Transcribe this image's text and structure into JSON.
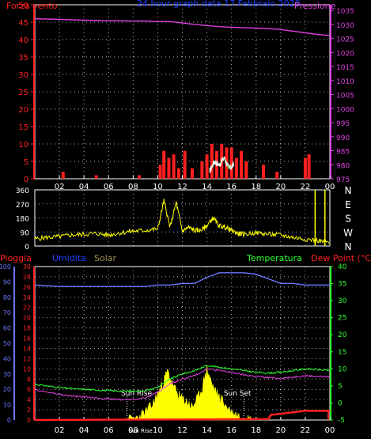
{
  "colors": {
    "red": "#ff2020",
    "magenta": "#e040e0",
    "blue": "#2040ff",
    "yellow": "#ffff00",
    "green": "#30ff30",
    "white": "#ffffff",
    "olive": "#a09050",
    "periwinkle": "#6a78ff",
    "grid": "#ffffff"
  },
  "chart_data": [
    {
      "type": "line",
      "title": "24 hour graph data  17 Febbraio 2020",
      "left_axis": {
        "label": "Forza vento",
        "ticks": [
          "0",
          "5",
          "10",
          "15",
          "20",
          "25",
          "30",
          "35",
          "40",
          "45",
          "50"
        ],
        "range": [
          0,
          50
        ]
      },
      "right_axis": {
        "label": "Pressione",
        "ticks": [
          "975",
          "980",
          "985",
          "990",
          "995",
          "1000",
          "1005",
          "1010",
          "1015",
          "1020",
          "1025",
          "1030",
          "1035"
        ],
        "range": [
          975,
          1037
        ]
      },
      "x_ticks": [
        "02",
        "04",
        "06",
        "08",
        "10",
        "12",
        "14",
        "16",
        "18",
        "20",
        "22",
        "00"
      ],
      "series": [
        {
          "name": "Pressione",
          "x": [
            0,
            2,
            4,
            6,
            8,
            9,
            10,
            11,
            12,
            13,
            14,
            15,
            16,
            17,
            18,
            19,
            20,
            21,
            22,
            23,
            24
          ],
          "y": [
            1032.0,
            1031.8,
            1031.5,
            1031.3,
            1031.2,
            1031.2,
            1031.0,
            1031.0,
            1030.5,
            1030.0,
            1029.6,
            1029.2,
            1029.0,
            1028.8,
            1028.7,
            1028.5,
            1028.2,
            1027.6,
            1027.0,
            1026.4,
            1026.0
          ]
        },
        {
          "name": "Forza vento",
          "x": [
            0,
            2.3,
            5,
            8.5,
            10.2,
            10.5,
            10.9,
            11.3,
            11.7,
            12.2,
            12.8,
            13.6,
            14.0,
            14.4,
            14.8,
            15.2,
            15.6,
            16.0,
            16.4,
            16.8,
            17.2,
            18.6,
            19.7,
            22.0,
            22.3
          ],
          "y": [
            0,
            2,
            1,
            1,
            4,
            8,
            6,
            7,
            3,
            8,
            3,
            5,
            7,
            10,
            8,
            10,
            9,
            9,
            6,
            8,
            5,
            4,
            2,
            6,
            7
          ]
        },
        {
          "name": "raffica",
          "x": [
            14.2,
            14.6,
            15.0,
            15.4,
            15.8,
            16.2
          ],
          "y": [
            2,
            5,
            4,
            6,
            3,
            4
          ]
        }
      ]
    },
    {
      "type": "line",
      "title": "",
      "left_axis": {
        "label": "",
        "ticks": [
          "0",
          "90",
          "180",
          "270",
          "360"
        ],
        "range": [
          0,
          360
        ]
      },
      "right_axis": {
        "label": "",
        "ticks": [
          "N",
          "W",
          "S",
          "E",
          "N"
        ]
      },
      "series": [
        {
          "name": "Direzione vento",
          "x": [
            0,
            1,
            2,
            3,
            4,
            5,
            6,
            7,
            8,
            9,
            10,
            10.5,
            11,
            11.5,
            12,
            12.5,
            13,
            13.5,
            14,
            14.5,
            15,
            15.5,
            16,
            16.5,
            17,
            18,
            19,
            20,
            21,
            22,
            23,
            24
          ],
          "y": [
            45,
            55,
            60,
            70,
            75,
            80,
            70,
            85,
            95,
            100,
            110,
            290,
            120,
            280,
            95,
            120,
            100,
            100,
            130,
            180,
            130,
            120,
            100,
            80,
            75,
            85,
            75,
            70,
            55,
            45,
            35,
            20
          ],
          "spikes_x": [
            22.8,
            23.6
          ]
        }
      ]
    },
    {
      "type": "line",
      "title": "",
      "labels": {
        "rain": "Pioggia",
        "humidity": "Umidita",
        "solar": "Solar",
        "temperature": "Temperatura",
        "dewpoint": "Dew Point (°C)"
      },
      "left_axis_outer": {
        "label": "Umidita",
        "ticks": [
          "0",
          "10",
          "20",
          "30",
          "40",
          "50",
          "60",
          "70",
          "80",
          "90",
          "100"
        ],
        "range": [
          0,
          100
        ]
      },
      "left_axis_inner": {
        "label": "Pioggia",
        "ticks": [
          "0",
          "2",
          "4",
          "6",
          "8",
          "10",
          "12",
          "14",
          "16",
          "18",
          "20",
          "22",
          "24",
          "26",
          "28",
          "30"
        ],
        "range": [
          0,
          30
        ]
      },
      "right_axis": {
        "label": "Temperatura",
        "ticks": [
          "-5",
          "0",
          "5",
          "10",
          "15",
          "20",
          "25",
          "30",
          "35",
          "40"
        ],
        "range": [
          -5,
          40
        ]
      },
      "x_ticks": [
        "02",
        "04",
        "06",
        "08",
        "10",
        "12",
        "14",
        "16",
        "18",
        "20",
        "22",
        "00"
      ],
      "sun_rise_label": "Sun Rise",
      "sun_set_label": "Sun Set",
      "sun_tick_label": "Sun Rise",
      "series": [
        {
          "name": "Umidita",
          "x": [
            0,
            2,
            4,
            6,
            8,
            9,
            10,
            11,
            12,
            13,
            14,
            15,
            16,
            17,
            18,
            19,
            20,
            21,
            22,
            23,
            24
          ],
          "y": [
            88,
            87,
            87,
            87,
            87,
            87,
            88,
            88,
            89,
            89,
            93,
            96,
            96,
            96,
            95,
            92,
            89,
            89,
            88,
            88,
            88
          ]
        },
        {
          "name": "Temperatura",
          "x": [
            0,
            1,
            2,
            3,
            4,
            5,
            6,
            7,
            8,
            9,
            10,
            11,
            12,
            13,
            14,
            15,
            16,
            17,
            18,
            19,
            20,
            21,
            22,
            23,
            24
          ],
          "y": [
            5.5,
            5.0,
            4.5,
            4.2,
            4.0,
            3.8,
            3.6,
            3.5,
            3.5,
            3.6,
            4.6,
            7.0,
            8.5,
            9.5,
            11.0,
            10.5,
            10.0,
            9.5,
            9.0,
            8.8,
            9.0,
            9.5,
            10.0,
            9.8,
            9.5
          ]
        },
        {
          "name": "Dew Point",
          "x": [
            0,
            1,
            2,
            3,
            4,
            5,
            6,
            7,
            8,
            9,
            10,
            11,
            12,
            13,
            14,
            15,
            16,
            17,
            18,
            19,
            20,
            21,
            22,
            23,
            24
          ],
          "y": [
            3.8,
            3.2,
            2.5,
            2.0,
            1.8,
            1.5,
            1.2,
            1.0,
            1.0,
            1.5,
            3.2,
            5.6,
            7.0,
            8.0,
            10.0,
            9.5,
            9.0,
            8.2,
            7.8,
            7.4,
            7.2,
            7.6,
            8.0,
            7.8,
            7.6
          ]
        },
        {
          "name": "Solar",
          "x": [
            7.6,
            8.4,
            9.0,
            9.6,
            10.0,
            10.4,
            10.8,
            11.2,
            11.6,
            12.0,
            12.4,
            12.8,
            13.2,
            13.6,
            14.0,
            14.4,
            14.8,
            15.2,
            15.6,
            16.0,
            16.4,
            16.8,
            17.2,
            17.6
          ],
          "y": [
            0,
            0.5,
            1.5,
            3,
            5,
            7,
            9.5,
            7,
            5,
            4,
            3.5,
            2.5,
            4,
            6,
            10,
            7,
            5,
            4,
            2.5,
            1.5,
            1,
            0.5,
            0.3,
            0
          ]
        },
        {
          "name": "Pioggia",
          "x": [
            0,
            19.0,
            19.2,
            22.0,
            24.0
          ],
          "y": [
            0,
            0.2,
            1.0,
            1.8,
            1.8
          ]
        }
      ]
    }
  ]
}
